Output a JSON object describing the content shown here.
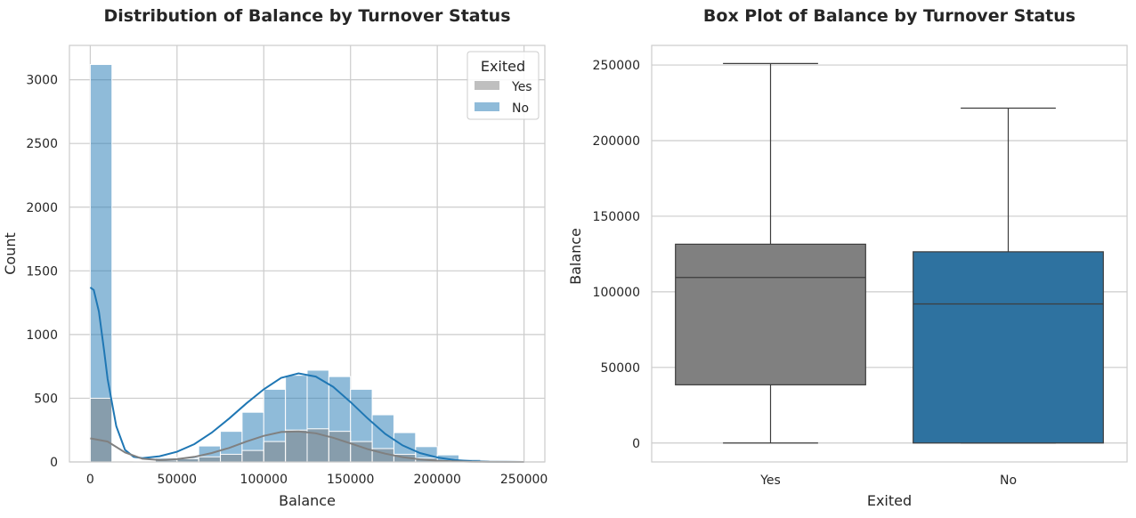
{
  "chart_data": [
    {
      "type": "histogram",
      "title": "Distribution of Balance by Turnover Status",
      "xlabel": "Balance",
      "ylabel": "Count",
      "xlim": [
        -12000,
        262000
      ],
      "ylim": [
        0,
        3270
      ],
      "xticks": [
        0,
        50000,
        100000,
        150000,
        200000,
        250000
      ],
      "yticks": [
        0,
        500,
        1000,
        1500,
        2000,
        2500,
        3000
      ],
      "grid": true,
      "legend": {
        "title": "Exited",
        "placement": "top-right"
      },
      "bin_edges": [
        0,
        12500,
        25000,
        37500,
        50000,
        62500,
        75000,
        87500,
        100000,
        112500,
        125000,
        137500,
        150000,
        162500,
        175000,
        187500,
        200000,
        212500,
        225000,
        237500,
        250000
      ],
      "series": [
        {
          "name": "Yes",
          "color": "#808080",
          "counts": [
            500,
            0,
            5,
            15,
            25,
            40,
            60,
            90,
            160,
            250,
            260,
            240,
            160,
            105,
            60,
            30,
            10,
            5,
            2,
            1
          ],
          "kde": [
            [
              0,
              185
            ],
            [
              10000,
              160
            ],
            [
              20000,
              75
            ],
            [
              30000,
              25
            ],
            [
              40000,
              15
            ],
            [
              50000,
              22
            ],
            [
              60000,
              40
            ],
            [
              70000,
              70
            ],
            [
              80000,
              110
            ],
            [
              90000,
              160
            ],
            [
              100000,
              205
            ],
            [
              110000,
              235
            ],
            [
              120000,
              240
            ],
            [
              130000,
              225
            ],
            [
              140000,
              190
            ],
            [
              150000,
              145
            ],
            [
              160000,
              100
            ],
            [
              170000,
              65
            ],
            [
              180000,
              38
            ],
            [
              190000,
              20
            ],
            [
              200000,
              10
            ],
            [
              210000,
              5
            ],
            [
              220000,
              2
            ],
            [
              230000,
              1
            ],
            [
              250000,
              0
            ]
          ]
        },
        {
          "name": "No",
          "color": "#1f77b4",
          "counts": [
            3120,
            0,
            10,
            30,
            35,
            125,
            240,
            390,
            570,
            680,
            720,
            670,
            570,
            370,
            230,
            120,
            55,
            20,
            8,
            2
          ],
          "kde": [
            [
              0,
              1370
            ],
            [
              2000,
              1350
            ],
            [
              5000,
              1180
            ],
            [
              8000,
              870
            ],
            [
              10000,
              650
            ],
            [
              15000,
              280
            ],
            [
              20000,
              95
            ],
            [
              25000,
              40
            ],
            [
              30000,
              30
            ],
            [
              40000,
              45
            ],
            [
              50000,
              80
            ],
            [
              60000,
              140
            ],
            [
              70000,
              230
            ],
            [
              80000,
              340
            ],
            [
              90000,
              460
            ],
            [
              100000,
              570
            ],
            [
              110000,
              660
            ],
            [
              120000,
              695
            ],
            [
              130000,
              670
            ],
            [
              140000,
              590
            ],
            [
              150000,
              470
            ],
            [
              160000,
              340
            ],
            [
              170000,
              220
            ],
            [
              180000,
              130
            ],
            [
              190000,
              70
            ],
            [
              200000,
              35
            ],
            [
              210000,
              15
            ],
            [
              220000,
              6
            ],
            [
              230000,
              2
            ],
            [
              250000,
              0
            ]
          ]
        }
      ]
    },
    {
      "type": "box",
      "title": "Box Plot of Balance by Turnover Status",
      "xlabel": "Exited",
      "ylabel": "Balance",
      "categories": [
        "Yes",
        "No"
      ],
      "ylim": [
        -12500,
        263000
      ],
      "yticks": [
        0,
        50000,
        100000,
        150000,
        200000,
        250000
      ],
      "grid": true,
      "boxes": [
        {
          "name": "Yes",
          "color": "#808080",
          "min": 0,
          "q1": 38500,
          "median": 109500,
          "q3": 131500,
          "max": 251000
        },
        {
          "name": "No",
          "color": "#2e72a0",
          "min": 0,
          "q1": 0,
          "median": 92000,
          "q3": 126500,
          "max": 221500
        }
      ]
    }
  ]
}
